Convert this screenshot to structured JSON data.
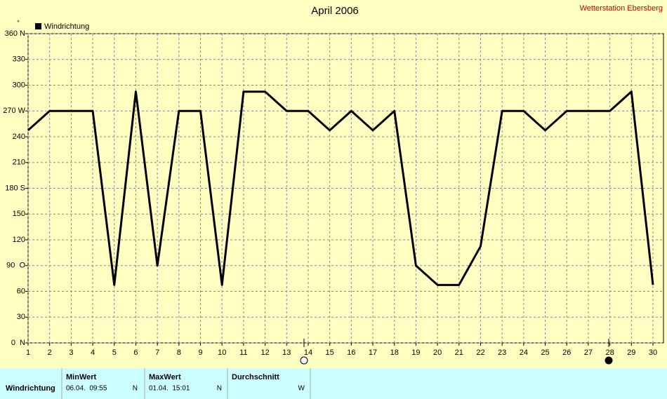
{
  "chart_data": {
    "type": "line",
    "title": "April 2006",
    "x": [
      1,
      2,
      3,
      4,
      5,
      6,
      7,
      8,
      9,
      10,
      11,
      12,
      13,
      14,
      15,
      16,
      17,
      18,
      19,
      20,
      21,
      22,
      23,
      24,
      25,
      26,
      27,
      28,
      29,
      30
    ],
    "series": [
      {
        "name": "Windrichtung",
        "color": "#000000",
        "values": [
          247.5,
          270,
          270,
          270,
          67.5,
          292.5,
          90,
          270,
          270,
          67.5,
          292.5,
          292.5,
          270,
          270,
          247.5,
          270,
          247.5,
          270,
          90,
          67.5,
          67.5,
          112.5,
          270,
          270,
          247.5,
          270,
          270,
          270,
          292.5,
          67.5
        ]
      }
    ],
    "xlim": [
      1,
      30
    ],
    "xticks": [
      1,
      2,
      3,
      4,
      5,
      6,
      7,
      8,
      9,
      10,
      11,
      12,
      13,
      14,
      15,
      16,
      17,
      18,
      19,
      20,
      21,
      22,
      23,
      24,
      25,
      26,
      27,
      28,
      29,
      30
    ],
    "ylim": [
      0,
      360
    ],
    "yticks": [
      {
        "value": 0,
        "label": "0  N"
      },
      30,
      60,
      {
        "value": 90,
        "label": "90  O"
      },
      120,
      150,
      {
        "value": 180,
        "label": "180 S"
      },
      210,
      240,
      {
        "value": 270,
        "label": "270 W"
      },
      300,
      330,
      {
        "value": 360,
        "label": "360 N"
      }
    ],
    "y_unit": "°",
    "grid": true,
    "legend": "top-left"
  },
  "station": "Wetterstation Ebersberg",
  "table": {
    "headers": [
      "MinWert",
      "MaxWert",
      "Durchschnitt"
    ],
    "rows": [
      [
        "Windrichtung",
        "06.04.  09:55",
        "N",
        "01.04.  15:01",
        "N",
        "W"
      ]
    ]
  }
}
